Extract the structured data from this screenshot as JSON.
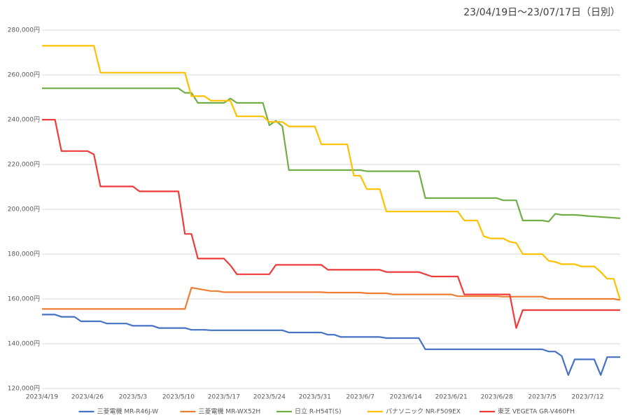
{
  "chart_data": {
    "type": "line",
    "title": "23/04/19日～23/07/17日（日別）",
    "categories": [
      "2023/4/19",
      null,
      null,
      null,
      null,
      null,
      null,
      "2023/4/26",
      null,
      null,
      null,
      null,
      null,
      null,
      "2023/5/3",
      null,
      null,
      null,
      null,
      null,
      null,
      "2023/5/10",
      null,
      null,
      null,
      null,
      null,
      null,
      "2023/5/17",
      null,
      null,
      null,
      null,
      null,
      null,
      "2023/5/24",
      null,
      null,
      null,
      null,
      null,
      null,
      "2023/5/31",
      null,
      null,
      null,
      null,
      null,
      null,
      "2023/6/7",
      null,
      null,
      null,
      null,
      null,
      null,
      "2023/6/14",
      null,
      null,
      null,
      null,
      null,
      null,
      "2023/6/21",
      null,
      null,
      null,
      null,
      null,
      null,
      "2023/6/28",
      null,
      null,
      null,
      null,
      null,
      null,
      "2023/7/5",
      null,
      null,
      null,
      null,
      null,
      null,
      "2023/7/12",
      null,
      null,
      null,
      null,
      null
    ],
    "ylim": [
      120000,
      280000
    ],
    "yticks": [
      {
        "value": 120000,
        "label": "120,000円"
      },
      {
        "value": 140000,
        "label": "140,000円"
      },
      {
        "value": 160000,
        "label": "160,000円"
      },
      {
        "value": 180000,
        "label": "180,000円"
      },
      {
        "value": 200000,
        "label": "200,000円"
      },
      {
        "value": 220000,
        "label": "220,000円"
      },
      {
        "value": 240000,
        "label": "240,000円"
      },
      {
        "value": 260000,
        "label": "260,000円"
      },
      {
        "value": 280000,
        "label": "280,000円"
      }
    ],
    "grid": true,
    "legend": "bottom",
    "series": [
      {
        "name": "三菱電機 MR-R46J-W",
        "color": "#4472c4",
        "values": [
          153000,
          153000,
          153000,
          152000,
          152000,
          152000,
          150000,
          150000,
          150000,
          150000,
          149000,
          149000,
          149000,
          149000,
          148000,
          148000,
          148000,
          148000,
          147000,
          147000,
          147000,
          147000,
          147000,
          146200,
          146200,
          146200,
          146000,
          146000,
          146000,
          146000,
          146000,
          146000,
          146000,
          146000,
          146000,
          146000,
          146000,
          146000,
          145000,
          145000,
          145000,
          145000,
          145000,
          145000,
          144000,
          144000,
          143000,
          143000,
          143000,
          143000,
          143000,
          143000,
          143000,
          142500,
          142500,
          142500,
          142500,
          142500,
          142500,
          137500,
          137500,
          137500,
          137500,
          137500,
          137500,
          137500,
          137500,
          137500,
          137500,
          137500,
          137500,
          137500,
          137500,
          137500,
          137500,
          137500,
          137500,
          137500,
          136500,
          136500,
          134500,
          126000,
          133000,
          133000,
          133000,
          133000,
          126000,
          134000,
          134000,
          134000
        ]
      },
      {
        "name": "三菱電機 MR-WX52H",
        "color": "#ed7d31",
        "values": [
          155500,
          155500,
          155500,
          155500,
          155500,
          155500,
          155500,
          155500,
          155500,
          155500,
          155500,
          155500,
          155500,
          155500,
          155500,
          155500,
          155500,
          155500,
          155500,
          155500,
          155500,
          155500,
          155500,
          165000,
          164500,
          164000,
          163500,
          163500,
          163000,
          163000,
          163000,
          163000,
          163000,
          163000,
          163000,
          163000,
          163000,
          163000,
          163000,
          163000,
          163000,
          163000,
          163000,
          163000,
          162800,
          162800,
          162800,
          162800,
          162800,
          162800,
          162500,
          162500,
          162500,
          162500,
          162000,
          162000,
          162000,
          162000,
          162000,
          162000,
          162000,
          162000,
          162000,
          162000,
          161200,
          161200,
          161200,
          161200,
          161200,
          161200,
          161200,
          161000,
          161000,
          161000,
          161000,
          161000,
          161000,
          161000,
          160000,
          160000,
          160000,
          160000,
          160000,
          160000,
          160000,
          160000,
          160000,
          160000,
          160000,
          159500
        ]
      },
      {
        "name": "日立 R-H54T(S)",
        "color": "#70ad47",
        "values": [
          254000,
          254000,
          254000,
          254000,
          254000,
          254000,
          254000,
          254000,
          254000,
          254000,
          254000,
          254000,
          254000,
          254000,
          254000,
          254000,
          254000,
          254000,
          254000,
          254000,
          254000,
          254000,
          252000,
          252000,
          247500,
          247500,
          247500,
          247500,
          247500,
          249500,
          247500,
          247500,
          247500,
          247500,
          247500,
          237500,
          239500,
          237000,
          217500,
          217500,
          217500,
          217500,
          217500,
          217500,
          217500,
          217500,
          217500,
          217500,
          217500,
          217500,
          217000,
          217000,
          217000,
          217000,
          217000,
          217000,
          217000,
          217000,
          217000,
          205000,
          205000,
          205000,
          205000,
          205000,
          205000,
          205000,
          205000,
          205000,
          205000,
          205000,
          205000,
          204000,
          204000,
          204000,
          195000,
          195000,
          195000,
          195000,
          194500,
          198000,
          197500,
          197500,
          197500,
          197300,
          197000,
          196800,
          196600,
          196400,
          196200,
          196000
        ]
      },
      {
        "name": "パナソニック NR-F509EX",
        "color": "#ffc000",
        "values": [
          273000,
          273000,
          273000,
          273000,
          273000,
          273000,
          273000,
          273000,
          273000,
          261000,
          261000,
          261000,
          261000,
          261000,
          261000,
          261000,
          261000,
          261000,
          261000,
          261000,
          261000,
          261000,
          261000,
          250500,
          250500,
          250500,
          248500,
          248500,
          248500,
          248500,
          241500,
          241500,
          241500,
          241500,
          241500,
          239000,
          239000,
          239000,
          237000,
          237000,
          237000,
          237000,
          237000,
          229000,
          229000,
          229000,
          229000,
          229000,
          215000,
          215000,
          209000,
          209000,
          209000,
          199000,
          199000,
          199000,
          199000,
          199000,
          199000,
          199000,
          199000,
          199000,
          199000,
          199000,
          199000,
          195000,
          195000,
          195000,
          188000,
          187000,
          187000,
          187000,
          185500,
          185000,
          180000,
          180000,
          180000,
          180000,
          177000,
          176500,
          175500,
          175500,
          175500,
          174500,
          174500,
          174500,
          172000,
          169000,
          169000,
          159500
        ]
      },
      {
        "name": "東芝 VEGETA GR-V460FH",
        "color": "#ee3b3b",
        "values": [
          240000,
          240000,
          240000,
          226000,
          226000,
          226000,
          226000,
          226000,
          224500,
          210200,
          210200,
          210200,
          210200,
          210200,
          210200,
          208000,
          208000,
          208000,
          208000,
          208000,
          208000,
          208000,
          189000,
          189000,
          178000,
          178000,
          178000,
          178000,
          178000,
          175000,
          171000,
          171000,
          171000,
          171000,
          171000,
          171000,
          175200,
          175200,
          175200,
          175200,
          175200,
          175200,
          175200,
          175200,
          173000,
          173000,
          173000,
          173000,
          173000,
          173000,
          173000,
          173000,
          173000,
          172000,
          172000,
          172000,
          172000,
          172000,
          172000,
          171000,
          170000,
          170000,
          170000,
          170000,
          170000,
          162000,
          162000,
          162000,
          162000,
          162000,
          162000,
          162000,
          162000,
          147000,
          155000,
          155000,
          155000,
          155000,
          155000,
          155000,
          155000,
          155000,
          155000,
          155000,
          155000,
          155000,
          155000,
          155000,
          155000,
          155000
        ]
      }
    ]
  }
}
